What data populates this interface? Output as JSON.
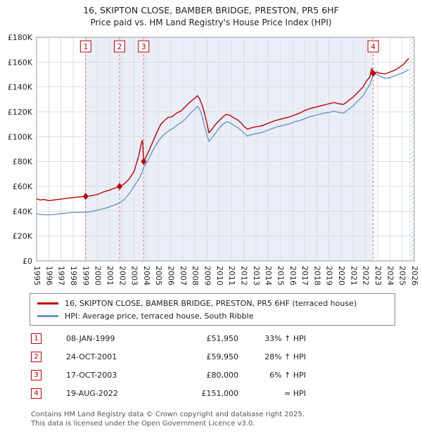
{
  "title": "16, SKIPTON CLOSE, BAMBER BRIDGE, PRESTON, PR5 6HF",
  "subtitle": "Price paid vs. HM Land Registry's House Price Index (HPI)",
  "colors": {
    "property_line": "#c00000",
    "hpi_line": "#6b96c8",
    "sale_dash_line": "#e57373",
    "shaded_band": "#e9eef8",
    "grid": "#dcdcdc",
    "plot_border": "#9a9a9a"
  },
  "chart_data": {
    "type": "line",
    "title": "16, SKIPTON CLOSE, BAMBER BRIDGE, PRESTON, PR5 6HF",
    "subtitle": "Price paid vs. HM Land Registry's House Price Index (HPI)",
    "x_range": [
      1995,
      2026
    ],
    "y_range": [
      0,
      180
    ],
    "y_unit": "GBP thousands",
    "y_ticks": [
      "£0",
      "£20K",
      "£40K",
      "£60K",
      "£80K",
      "£100K",
      "£120K",
      "£140K",
      "£160K",
      "£180K"
    ],
    "grid": true,
    "legend_position": "below",
    "shaded_region": [
      1999.03,
      2022.63
    ],
    "hatched_region": [
      2025.6,
      2026
    ],
    "series": [
      {
        "name": "16, SKIPTON CLOSE, BAMBER BRIDGE, PRESTON, PR5 6HF (terraced house)",
        "color": "#c00000",
        "points": [
          [
            1995.0,
            50.0
          ],
          [
            1995.3,
            49.0
          ],
          [
            1995.6,
            49.5
          ],
          [
            1996.0,
            48.5
          ],
          [
            1996.4,
            49.0
          ],
          [
            1996.8,
            49.5
          ],
          [
            1997.2,
            50.0
          ],
          [
            1997.6,
            50.5
          ],
          [
            1998.0,
            51.0
          ],
          [
            1998.5,
            51.5
          ],
          [
            1999.03,
            51.95
          ],
          [
            1999.5,
            52.5
          ],
          [
            2000.0,
            53.5
          ],
          [
            2000.5,
            55.5
          ],
          [
            2001.0,
            57.0
          ],
          [
            2001.4,
            58.5
          ],
          [
            2001.81,
            59.95
          ],
          [
            2002.2,
            62.0
          ],
          [
            2002.6,
            66.0
          ],
          [
            2003.0,
            72.0
          ],
          [
            2003.4,
            85.0
          ],
          [
            2003.6,
            95.0
          ],
          [
            2003.7,
            97.0
          ],
          [
            2003.79,
            80.0
          ],
          [
            2004.1,
            86.0
          ],
          [
            2004.5,
            95.0
          ],
          [
            2004.9,
            104.0
          ],
          [
            2005.2,
            110.0
          ],
          [
            2005.5,
            113.0
          ],
          [
            2005.8,
            115.5
          ],
          [
            2006.1,
            116.0
          ],
          [
            2006.5,
            119.0
          ],
          [
            2006.9,
            121.0
          ],
          [
            2007.2,
            124.0
          ],
          [
            2007.5,
            127.0
          ],
          [
            2007.8,
            129.5
          ],
          [
            2008.0,
            131.0
          ],
          [
            2008.2,
            133.0
          ],
          [
            2008.4,
            130.0
          ],
          [
            2008.6,
            125.0
          ],
          [
            2008.8,
            118.0
          ],
          [
            2009.0,
            110.0
          ],
          [
            2009.15,
            103.0
          ],
          [
            2009.4,
            106.0
          ],
          [
            2009.7,
            110.0
          ],
          [
            2010.0,
            113.0
          ],
          [
            2010.3,
            116.0
          ],
          [
            2010.6,
            118.0
          ],
          [
            2010.9,
            117.0
          ],
          [
            2011.2,
            115.0
          ],
          [
            2011.5,
            113.5
          ],
          [
            2011.8,
            111.0
          ],
          [
            2012.0,
            108.5
          ],
          [
            2012.3,
            106.0
          ],
          [
            2012.6,
            107.0
          ],
          [
            2013.0,
            108.0
          ],
          [
            2013.4,
            108.5
          ],
          [
            2013.8,
            110.0
          ],
          [
            2014.2,
            111.5
          ],
          [
            2014.6,
            113.0
          ],
          [
            2015.0,
            114.0
          ],
          [
            2015.4,
            115.0
          ],
          [
            2015.8,
            116.0
          ],
          [
            2016.2,
            117.5
          ],
          [
            2016.6,
            119.0
          ],
          [
            2017.0,
            121.0
          ],
          [
            2017.4,
            122.5
          ],
          [
            2017.8,
            123.5
          ],
          [
            2018.2,
            124.5
          ],
          [
            2018.6,
            125.5
          ],
          [
            2019.0,
            126.5
          ],
          [
            2019.4,
            127.5
          ],
          [
            2019.8,
            126.5
          ],
          [
            2020.2,
            126.0
          ],
          [
            2020.6,
            129.0
          ],
          [
            2021.0,
            132.0
          ],
          [
            2021.4,
            136.0
          ],
          [
            2021.8,
            140.0
          ],
          [
            2022.1,
            145.0
          ],
          [
            2022.35,
            148.0
          ],
          [
            2022.5,
            155.0
          ],
          [
            2022.63,
            151.0
          ],
          [
            2022.9,
            152.0
          ],
          [
            2023.2,
            151.0
          ],
          [
            2023.6,
            150.5
          ],
          [
            2024.0,
            152.0
          ],
          [
            2024.4,
            153.5
          ],
          [
            2024.8,
            156.0
          ],
          [
            2025.1,
            158.0
          ],
          [
            2025.35,
            161.0
          ],
          [
            2025.55,
            163.0
          ]
        ]
      },
      {
        "name": "HPI: Average price, terraced house, South Ribble",
        "color": "#6b96c8",
        "points": [
          [
            1995.0,
            38.0
          ],
          [
            1995.3,
            37.5
          ],
          [
            1995.6,
            37.2
          ],
          [
            1996.0,
            37.0
          ],
          [
            1996.4,
            37.3
          ],
          [
            1996.8,
            37.8
          ],
          [
            1997.2,
            38.2
          ],
          [
            1997.6,
            38.6
          ],
          [
            1998.0,
            39.0
          ],
          [
            1998.5,
            39.0
          ],
          [
            1999.03,
            39.0
          ],
          [
            1999.5,
            39.8
          ],
          [
            2000.0,
            40.8
          ],
          [
            2000.5,
            42.0
          ],
          [
            2001.0,
            43.5
          ],
          [
            2001.4,
            45.0
          ],
          [
            2001.81,
            46.8
          ],
          [
            2002.2,
            49.5
          ],
          [
            2002.6,
            54.0
          ],
          [
            2003.0,
            60.0
          ],
          [
            2003.4,
            66.0
          ],
          [
            2003.6,
            70.0
          ],
          [
            2003.7,
            72.5
          ],
          [
            2003.79,
            75.5
          ],
          [
            2004.1,
            80.0
          ],
          [
            2004.5,
            88.0
          ],
          [
            2004.9,
            95.0
          ],
          [
            2005.2,
            99.0
          ],
          [
            2005.5,
            102.0
          ],
          [
            2005.8,
            104.5
          ],
          [
            2006.1,
            106.0
          ],
          [
            2006.5,
            109.0
          ],
          [
            2006.9,
            111.5
          ],
          [
            2007.2,
            114.0
          ],
          [
            2007.5,
            117.5
          ],
          [
            2007.8,
            120.5
          ],
          [
            2008.0,
            122.0
          ],
          [
            2008.2,
            124.5
          ],
          [
            2008.4,
            122.0
          ],
          [
            2008.6,
            116.0
          ],
          [
            2008.8,
            108.0
          ],
          [
            2009.0,
            101.0
          ],
          [
            2009.15,
            96.0
          ],
          [
            2009.4,
            99.0
          ],
          [
            2009.7,
            103.0
          ],
          [
            2010.0,
            107.0
          ],
          [
            2010.3,
            110.0
          ],
          [
            2010.6,
            112.0
          ],
          [
            2010.9,
            111.0
          ],
          [
            2011.2,
            109.0
          ],
          [
            2011.5,
            107.5
          ],
          [
            2011.8,
            105.0
          ],
          [
            2012.0,
            103.0
          ],
          [
            2012.3,
            100.5
          ],
          [
            2012.6,
            101.5
          ],
          [
            2013.0,
            102.5
          ],
          [
            2013.4,
            103.0
          ],
          [
            2013.8,
            104.5
          ],
          [
            2014.2,
            106.0
          ],
          [
            2014.6,
            107.5
          ],
          [
            2015.0,
            108.5
          ],
          [
            2015.4,
            109.5
          ],
          [
            2015.8,
            110.5
          ],
          [
            2016.2,
            112.0
          ],
          [
            2016.6,
            113.0
          ],
          [
            2017.0,
            114.5
          ],
          [
            2017.4,
            116.0
          ],
          [
            2017.8,
            117.0
          ],
          [
            2018.2,
            118.0
          ],
          [
            2018.6,
            119.0
          ],
          [
            2019.0,
            119.5
          ],
          [
            2019.4,
            120.5
          ],
          [
            2019.8,
            119.5
          ],
          [
            2020.2,
            119.0
          ],
          [
            2020.6,
            122.0
          ],
          [
            2021.0,
            125.0
          ],
          [
            2021.4,
            129.0
          ],
          [
            2021.8,
            133.0
          ],
          [
            2022.1,
            138.0
          ],
          [
            2022.35,
            142.0
          ],
          [
            2022.5,
            146.0
          ],
          [
            2022.63,
            150.0
          ],
          [
            2022.9,
            150.5
          ],
          [
            2023.2,
            148.5
          ],
          [
            2023.6,
            147.0
          ],
          [
            2024.0,
            147.5
          ],
          [
            2024.4,
            149.0
          ],
          [
            2024.8,
            150.5
          ],
          [
            2025.1,
            151.5
          ],
          [
            2025.35,
            153.0
          ],
          [
            2025.55,
            154.0
          ]
        ]
      }
    ],
    "sales": [
      {
        "n": "1",
        "x": 1999.03,
        "y": 51.95,
        "date": "08-JAN-1999",
        "price": "£51,950",
        "vs_hpi": "33% ↑ HPI"
      },
      {
        "n": "2",
        "x": 2001.81,
        "y": 59.95,
        "date": "24-OCT-2001",
        "price": "£59,950",
        "vs_hpi": "28% ↑ HPI"
      },
      {
        "n": "3",
        "x": 2003.79,
        "y": 80.0,
        "date": "17-OCT-2003",
        "price": "£80,000",
        "vs_hpi": "6% ↑ HPI"
      },
      {
        "n": "4",
        "x": 2022.63,
        "y": 151.0,
        "date": "19-AUG-2022",
        "price": "£151,000",
        "vs_hpi": "≈ HPI"
      }
    ]
  },
  "footer": {
    "line1": "Contains HM Land Registry data © Crown copyright and database right 2025.",
    "line2": "This data is licensed under the Open Government Licence v3.0."
  }
}
